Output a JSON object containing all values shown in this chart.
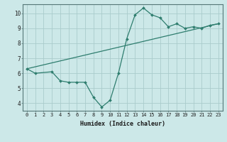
{
  "line1_x": [
    0,
    1,
    3,
    4,
    5,
    6,
    7,
    8,
    9,
    10,
    11,
    12,
    13,
    14,
    15,
    16,
    17,
    18,
    19,
    20,
    21,
    22,
    23
  ],
  "line1_y": [
    6.3,
    6.0,
    6.1,
    5.5,
    5.4,
    5.4,
    5.4,
    4.4,
    3.75,
    4.2,
    6.0,
    8.3,
    9.9,
    10.35,
    9.9,
    9.7,
    9.1,
    9.3,
    9.0,
    9.1,
    9.0,
    9.2,
    9.3
  ],
  "line2_x": [
    0,
    23
  ],
  "line2_y": [
    6.3,
    9.3
  ],
  "color": "#2e7d6e",
  "bg_color": "#cce8e8",
  "grid_color": "#aacccc",
  "xlabel": "Humidex (Indice chaleur)",
  "xlim": [
    -0.5,
    23.5
  ],
  "ylim": [
    3.5,
    10.6
  ],
  "yticks": [
    4,
    5,
    6,
    7,
    8,
    9,
    10
  ],
  "xticks": [
    0,
    1,
    2,
    3,
    4,
    5,
    6,
    7,
    8,
    9,
    10,
    11,
    12,
    13,
    14,
    15,
    16,
    17,
    18,
    19,
    20,
    21,
    22,
    23
  ],
  "tick_fontsize": 5.0,
  "xlabel_fontsize": 6.0,
  "marker_size": 2.0,
  "line_width": 0.9
}
